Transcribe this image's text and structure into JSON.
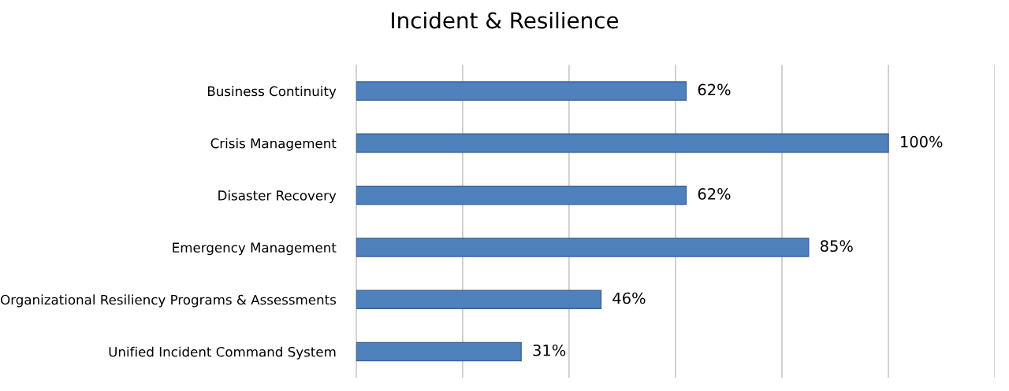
{
  "chart_data": {
    "type": "bar",
    "orientation": "horizontal",
    "title": "Incident & Resilience",
    "categories": [
      "Business Continuity",
      "Crisis Management",
      "Disaster Recovery",
      "Emergency Management",
      "Organizational Resiliency Programs & Assessments",
      "Unified Incident Command System"
    ],
    "values": [
      62,
      100,
      62,
      85,
      46,
      31
    ],
    "value_labels": [
      "62%",
      "100%",
      "62%",
      "85%",
      "46%",
      "31%"
    ],
    "color": "#4f81bd",
    "xlim": [
      0,
      120
    ],
    "xticks": [
      {
        "value": 0,
        "label": null
      },
      {
        "value": 20,
        "label": null
      },
      {
        "value": 40,
        "label": null
      },
      {
        "value": 60,
        "label": null
      },
      {
        "value": 80,
        "label": null
      },
      {
        "value": 100,
        "label": null
      },
      {
        "value": 120,
        "label": null
      }
    ],
    "tick_labels": "y",
    "grid": "x"
  }
}
